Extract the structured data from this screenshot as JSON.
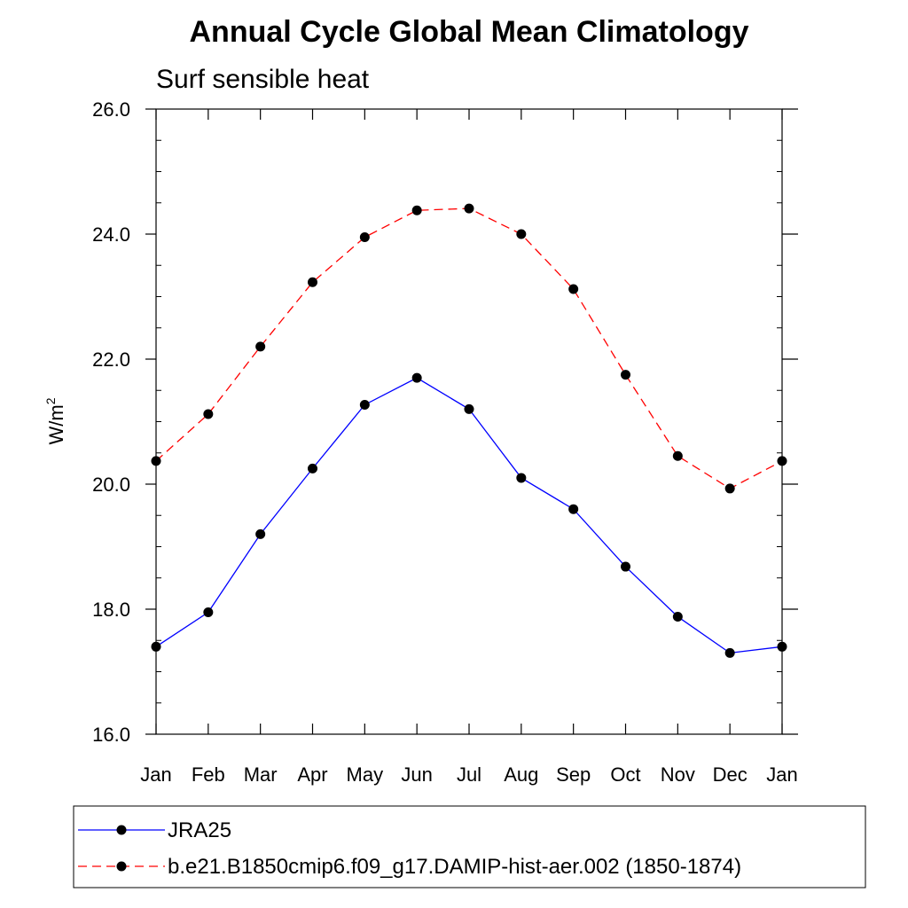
{
  "chart_data": {
    "type": "line",
    "title": "Annual Cycle Global Mean Climatology",
    "subtitle": "Surf sensible heat",
    "xlabel": "",
    "ylabel": "W/m",
    "ylabel_superscript": "2",
    "categories": [
      "Jan",
      "Feb",
      "Mar",
      "Apr",
      "May",
      "Jun",
      "Jul",
      "Aug",
      "Sep",
      "Oct",
      "Nov",
      "Dec",
      "Jan"
    ],
    "ylim": [
      16.0,
      26.0
    ],
    "yticks": [
      "16.0",
      "18.0",
      "20.0",
      "22.0",
      "24.0",
      "26.0"
    ],
    "grid": false,
    "legend_position": "bottom",
    "series": [
      {
        "name": "JRA25",
        "color": "#0000ff",
        "line_style": "solid",
        "marker": "filled-circle",
        "values": [
          17.4,
          17.95,
          19.2,
          20.25,
          21.27,
          21.7,
          21.2,
          20.1,
          19.6,
          18.68,
          17.88,
          17.3,
          17.4
        ]
      },
      {
        "name": "b.e21.B1850cmip6.f09_g17.DAMIP-hist-aer.002 (1850-1874)",
        "color": "#ff0000",
        "line_style": "dashed",
        "marker": "filled-circle",
        "values": [
          20.37,
          21.12,
          22.2,
          23.23,
          23.95,
          24.38,
          24.41,
          24.0,
          23.12,
          21.75,
          20.45,
          19.93,
          20.37
        ]
      }
    ]
  }
}
